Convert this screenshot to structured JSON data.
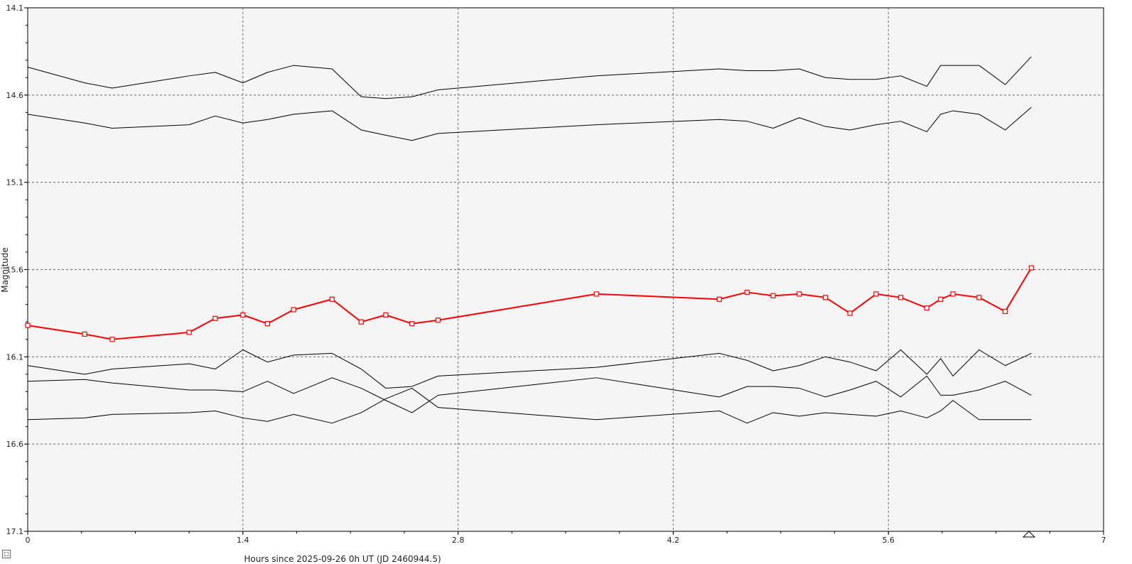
{
  "chart_data": {
    "type": "line",
    "title": "",
    "xlabel": "Hours since 2025-09-26 0h UT (JD 2460944.5)",
    "ylabel": "Magnitude",
    "xlim": [
      0,
      7
    ],
    "ylim": [
      14.1,
      17.1
    ],
    "y_inverted": true,
    "x_ticks": [
      "0",
      "1.4",
      "2.8",
      "4.2",
      "5.6",
      "7"
    ],
    "y_ticks": [
      "14.1",
      "14.6",
      "15.1",
      "15.6",
      "16.1",
      "16.6",
      "17.1"
    ],
    "grid": true,
    "legend": "none",
    "x": [
      0,
      0.37,
      0.55,
      1.05,
      1.22,
      1.4,
      1.56,
      1.73,
      1.98,
      2.17,
      2.33,
      2.5,
      2.67,
      3.7,
      4.5,
      4.68,
      4.85,
      5.02,
      5.19,
      5.35,
      5.52,
      5.68,
      5.85,
      5.94,
      6.02,
      6.19,
      6.36,
      6.53
    ],
    "series": [
      {
        "color": "#000000",
        "marker": "none",
        "values": [
          14.44,
          14.53,
          14.56,
          14.49,
          14.47,
          14.53,
          14.47,
          14.43,
          14.45,
          14.61,
          14.62,
          14.61,
          14.57,
          14.49,
          14.45,
          14.46,
          14.46,
          14.45,
          14.5,
          14.51,
          14.51,
          14.49,
          14.55,
          14.43,
          14.43,
          14.43,
          14.54,
          14.38
        ]
      },
      {
        "color": "#000000",
        "marker": "none",
        "values": [
          14.71,
          14.76,
          14.79,
          14.77,
          14.72,
          14.76,
          14.74,
          14.71,
          14.69,
          14.8,
          14.83,
          14.86,
          14.82,
          14.77,
          14.74,
          14.75,
          14.79,
          14.73,
          14.78,
          14.8,
          14.77,
          14.75,
          14.81,
          14.71,
          14.69,
          14.71,
          14.8,
          14.67
        ]
      },
      {
        "color": "#ff0000",
        "marker": "square",
        "values": [
          15.92,
          15.97,
          16.0,
          15.96,
          15.88,
          15.86,
          15.91,
          15.83,
          15.77,
          15.9,
          15.86,
          15.91,
          15.89,
          15.74,
          15.77,
          15.73,
          15.75,
          15.74,
          15.76,
          15.85,
          15.74,
          15.76,
          15.82,
          15.77,
          15.74,
          15.76,
          15.84,
          15.59
        ]
      },
      {
        "color": "#000000",
        "marker": "none",
        "values": [
          16.15,
          16.2,
          16.17,
          16.14,
          16.17,
          16.06,
          16.13,
          16.09,
          16.08,
          16.17,
          16.28,
          16.27,
          16.21,
          16.16,
          16.08,
          16.12,
          16.18,
          16.15,
          16.1,
          16.13,
          16.18,
          16.06,
          16.2,
          16.11,
          16.21,
          16.06,
          16.15,
          16.08
        ]
      },
      {
        "color": "#000000",
        "marker": "none",
        "values": [
          16.24,
          16.23,
          16.25,
          16.29,
          16.29,
          16.3,
          16.24,
          16.31,
          16.22,
          16.28,
          16.35,
          16.42,
          16.32,
          16.22,
          16.33,
          16.27,
          16.27,
          16.28,
          16.33,
          16.29,
          16.24,
          16.33,
          16.21,
          16.32,
          16.32,
          16.29,
          16.24,
          16.32
        ]
      },
      {
        "color": "#000000",
        "marker": "none",
        "values": [
          16.46,
          16.45,
          16.43,
          16.42,
          16.41,
          16.45,
          16.47,
          16.43,
          16.48,
          16.42,
          16.34,
          16.28,
          16.39,
          16.46,
          16.41,
          16.48,
          16.42,
          16.44,
          16.42,
          16.43,
          16.44,
          16.41,
          16.45,
          16.41,
          16.35,
          16.46,
          16.46,
          16.46
        ]
      }
    ]
  }
}
